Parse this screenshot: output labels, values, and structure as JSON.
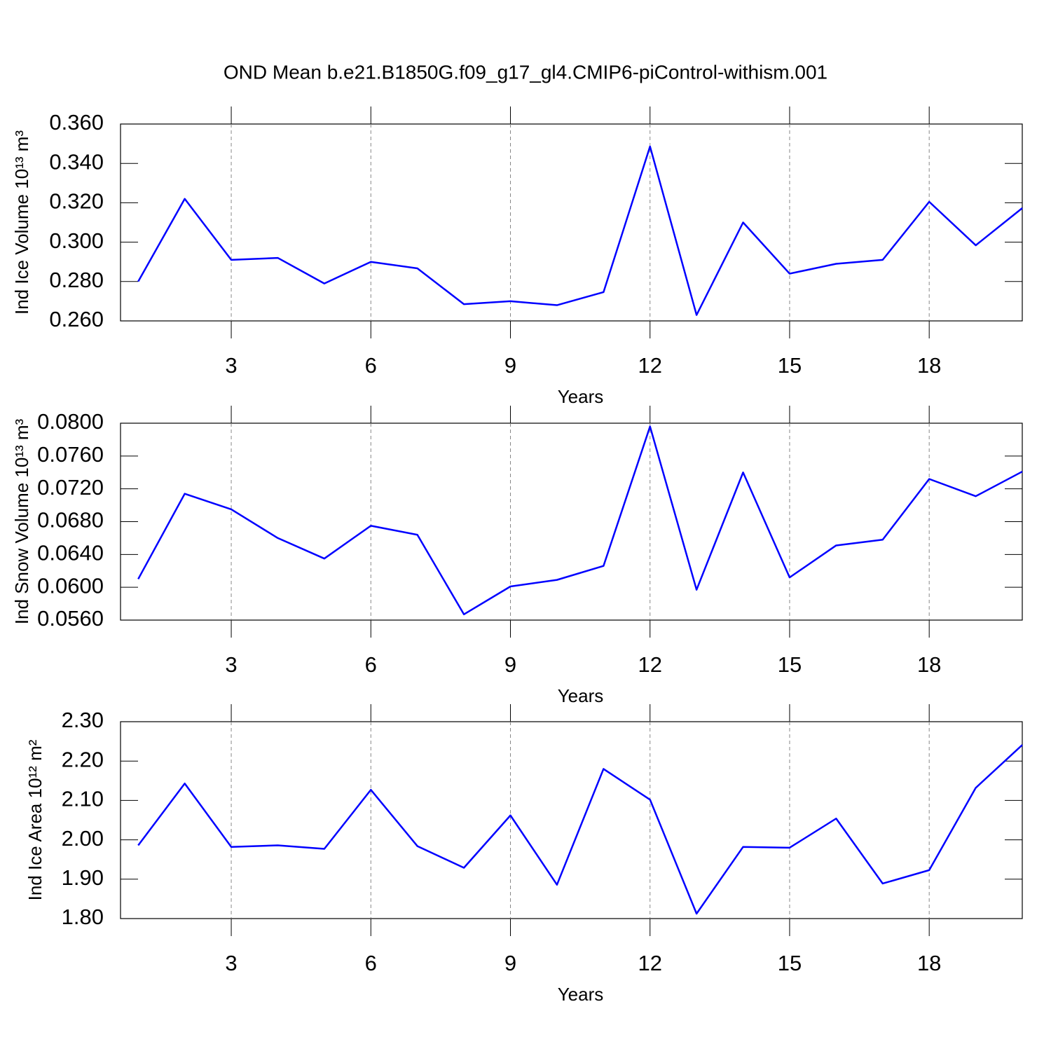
{
  "chart_data": [
    {
      "type": "line",
      "title": "OND Mean b.e21.B1850G.f09_g17_gl4.CMIP6-piControl-withism.001",
      "xlabel": "Years",
      "ylabel": "Ind Ice Volume 10¹³ m³",
      "color": "#0000ff",
      "grid": true,
      "x": [
        1,
        2,
        3,
        4,
        5,
        6,
        7,
        8,
        9,
        10,
        11,
        12,
        13,
        14,
        15,
        16,
        17,
        18,
        19,
        20
      ],
      "values": [
        0.28,
        0.322,
        0.291,
        0.292,
        0.279,
        0.29,
        0.2867,
        0.2685,
        0.27,
        0.268,
        0.2746,
        0.3486,
        0.263,
        0.31,
        0.284,
        0.289,
        0.291,
        0.3205,
        0.2984,
        0.3173
      ],
      "xlim": [
        0.62,
        20
      ],
      "xticks": [
        3,
        6,
        9,
        12,
        15,
        18
      ],
      "ylim": [
        0.26,
        0.36
      ],
      "yticks": [
        {
          "value": 0.26,
          "label": "0.260"
        },
        {
          "value": 0.28,
          "label": "0.280"
        },
        {
          "value": 0.3,
          "label": "0.300"
        },
        {
          "value": 0.32,
          "label": "0.320"
        },
        {
          "value": 0.34,
          "label": "0.340"
        },
        {
          "value": 0.36,
          "label": "0.360"
        }
      ]
    },
    {
      "type": "line",
      "xlabel": "Years",
      "ylabel": "Ind Snow Volume 10¹³ m³",
      "color": "#0000ff",
      "grid": true,
      "x": [
        1,
        2,
        3,
        4,
        5,
        6,
        7,
        8,
        9,
        10,
        11,
        12,
        13,
        14,
        15,
        16,
        17,
        18,
        19,
        20
      ],
      "values": [
        0.061,
        0.0714,
        0.0695,
        0.066,
        0.0635,
        0.0675,
        0.0664,
        0.0567,
        0.0601,
        0.0609,
        0.0626,
        0.0796,
        0.0597,
        0.074,
        0.0612,
        0.0651,
        0.0658,
        0.0732,
        0.0711,
        0.0741
      ],
      "xlim": [
        0.62,
        20
      ],
      "xticks": [
        3,
        6,
        9,
        12,
        15,
        18
      ],
      "ylim": [
        0.056,
        0.08
      ],
      "yticks": [
        {
          "value": 0.056,
          "label": "0.0560"
        },
        {
          "value": 0.06,
          "label": "0.0600"
        },
        {
          "value": 0.064,
          "label": "0.0640"
        },
        {
          "value": 0.068,
          "label": "0.0680"
        },
        {
          "value": 0.072,
          "label": "0.0720"
        },
        {
          "value": 0.076,
          "label": "0.0760"
        },
        {
          "value": 0.08,
          "label": "0.0800"
        }
      ]
    },
    {
      "type": "line",
      "xlabel": "Years",
      "ylabel": "Ind Ice Area 10¹² m²",
      "color": "#0000ff",
      "grid": true,
      "x": [
        1,
        2,
        3,
        4,
        5,
        6,
        7,
        8,
        9,
        10,
        11,
        12,
        13,
        14,
        15,
        16,
        17,
        18,
        19,
        20
      ],
      "values": [
        1.986,
        2.143,
        1.982,
        1.986,
        1.977,
        2.127,
        1.984,
        1.929,
        2.062,
        1.886,
        2.18,
        2.102,
        1.8125,
        1.982,
        1.98,
        2.054,
        1.889,
        1.923,
        2.132,
        2.241
      ],
      "xlim": [
        0.62,
        20
      ],
      "xticks": [
        3,
        6,
        9,
        12,
        15,
        18
      ],
      "ylim": [
        1.8,
        2.3
      ],
      "yticks": [
        {
          "value": 1.8,
          "label": "1.80"
        },
        {
          "value": 1.9,
          "label": "1.90"
        },
        {
          "value": 2.0,
          "label": "2.00"
        },
        {
          "value": 2.1,
          "label": "2.10"
        },
        {
          "value": 2.2,
          "label": "2.20"
        },
        {
          "value": 2.3,
          "label": "2.30"
        }
      ]
    }
  ]
}
